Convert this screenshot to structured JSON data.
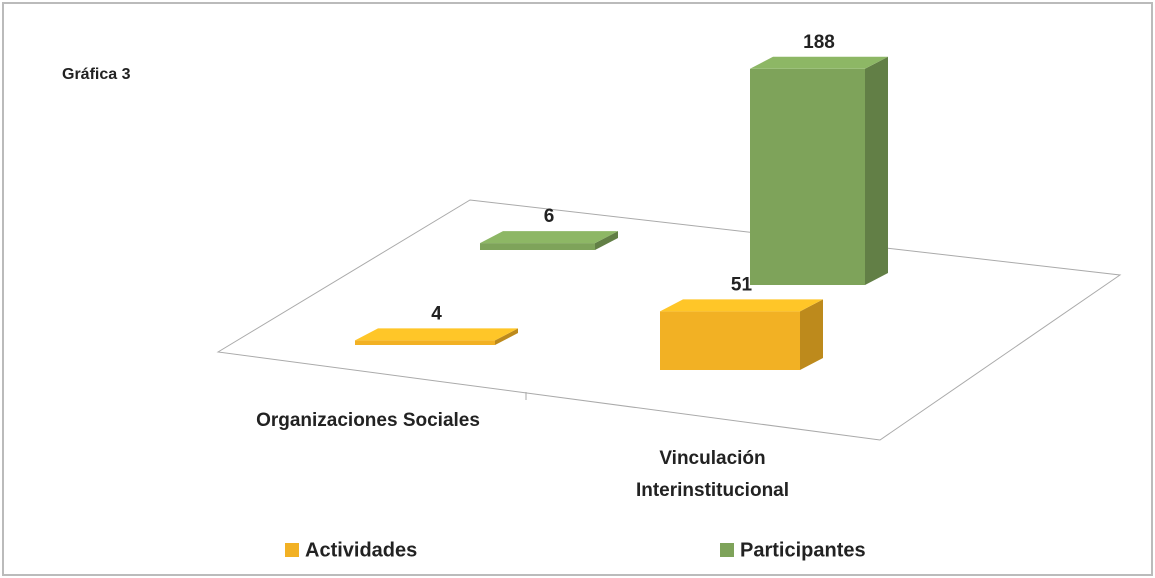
{
  "chart_data": {
    "type": "bar3d",
    "title": "Gráfica 3",
    "categories": [
      "Organizaciones Sociales",
      "Vinculación Interinstitucional"
    ],
    "series": [
      {
        "name": "Actividades",
        "color": "#f2b124",
        "values": [
          4,
          51
        ]
      },
      {
        "name": "Participantes",
        "color": "#7ea35a",
        "values": [
          6,
          188
        ]
      }
    ]
  }
}
